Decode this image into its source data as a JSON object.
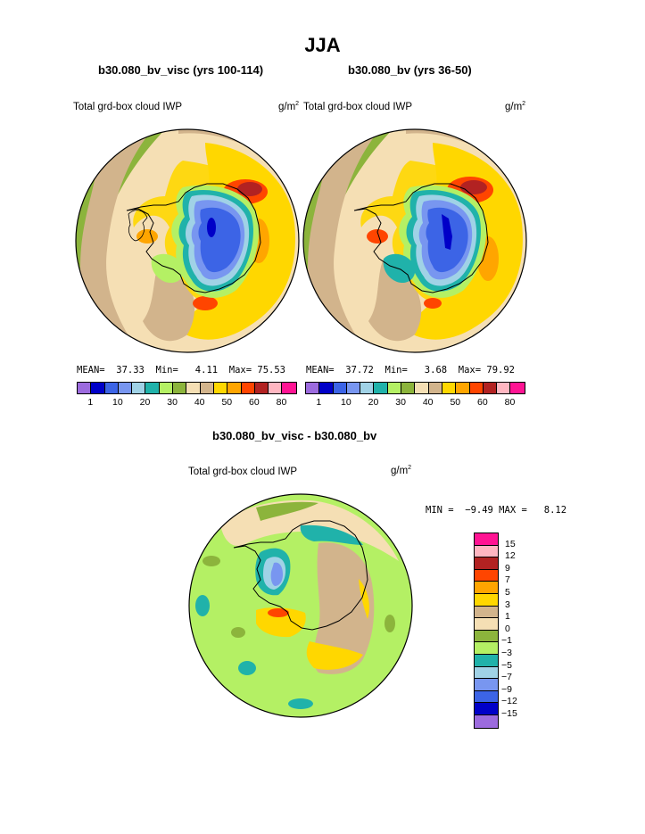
{
  "figure_title": "JJA",
  "left_panel": {
    "case": "b30.080_bv_visc (yrs 100-114)",
    "variable": "Total grd-box cloud IWP",
    "units": "g/m",
    "units_exp": "2",
    "mean_label": "MEAN=",
    "mean": "37.33",
    "min_label": "Min=",
    "min": "4.11",
    "max_label": "Max=",
    "max": "75.53"
  },
  "right_panel": {
    "case": "b30.080_bv (yrs 36-50)",
    "variable": "Total grd-box cloud IWP",
    "units": "g/m",
    "units_exp": "2",
    "mean_label": "MEAN=",
    "mean": "37.72",
    "min_label": "Min=",
    "min": "3.68",
    "max_label": "Max=",
    "max": "79.92"
  },
  "abs_colorbar": {
    "colors": [
      "#9c6bde",
      "#0000c8",
      "#3c64e6",
      "#7896f0",
      "#a0d2e6",
      "#20b2aa",
      "#b4f064",
      "#8cb43c",
      "#f5dfb4",
      "#d2b48c",
      "#ffd700",
      "#ffa500",
      "#ff4500",
      "#b22222",
      "#ffb6c1",
      "#ff1493"
    ],
    "labels": [
      "1",
      "10",
      "20",
      "30",
      "40",
      "50",
      "60",
      "80"
    ]
  },
  "diff_panel": {
    "case": "b30.080_bv_visc - b30.080_bv",
    "variable": "Total grd-box cloud IWP",
    "units": "g/m",
    "units_exp": "2",
    "stats": "MIN =  −9.49 MAX =   8.12"
  },
  "diff_colorbar": {
    "colors": [
      "#ff1493",
      "#ffb6c1",
      "#b22222",
      "#ff4500",
      "#ffa500",
      "#ffd700",
      "#d2b48c",
      "#f5dfb4",
      "#8cb43c",
      "#b4f064",
      "#20b2aa",
      "#a0d2e6",
      "#7896f0",
      "#3c64e6",
      "#0000c8",
      "#9c6bde"
    ],
    "labels": [
      "15",
      "12",
      "9",
      "7",
      "5",
      "3",
      "1",
      "0",
      "−1",
      "−3",
      "−5",
      "−7",
      "−9",
      "−12",
      "−15"
    ]
  }
}
